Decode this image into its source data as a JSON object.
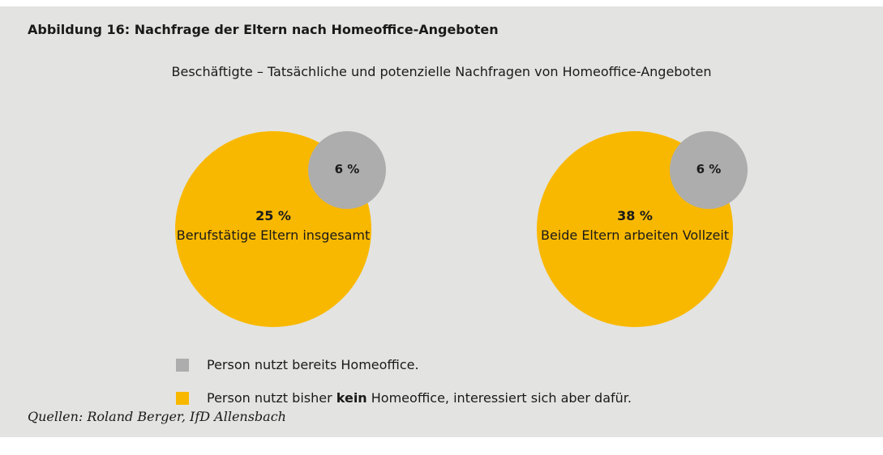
{
  "title": "Abbildung 16: Nachfrage der Eltern nach Homeoffice-Angeboten",
  "subtitle": "Beschäftigte – Tatsächliche und potenzielle Nachfragen von Homeoffice-Angeboten",
  "legend": [
    {
      "parts": [
        "Person nutzt bereits Homeoffice."
      ],
      "color": "#adadad"
    },
    {
      "parts": [
        "Person nutzt bisher ",
        "kein",
        " Homeoffice, interessiert sich aber dafür."
      ],
      "color": "#f9b800"
    }
  ],
  "source": "Quellen: Roland Berger, IfD Allensbach",
  "chart_data": [
    {
      "type": "pie",
      "name": "Berufstätige Eltern insgesamt",
      "values": [
        6,
        25
      ],
      "value_labels": [
        "6 %",
        "25 %"
      ],
      "colors": [
        "#adadad",
        "#f9b800"
      ]
    },
    {
      "type": "pie",
      "name": "Beide Eltern arbeiten Vollzeit",
      "values": [
        6,
        38
      ],
      "value_labels": [
        "6 %",
        "38 %"
      ],
      "colors": [
        "#adadad",
        "#f9b800"
      ]
    }
  ]
}
